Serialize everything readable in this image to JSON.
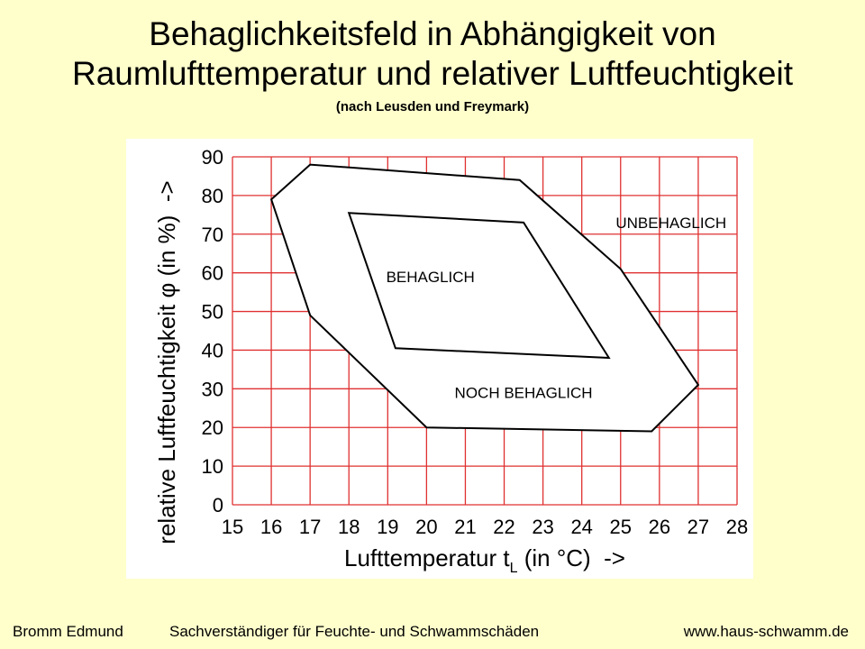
{
  "title": {
    "line1": "Behaglichkeitsfeld in Abhängigkeit von",
    "line2": "Raumlufttemperatur und relativer Luftfeuchtigkeit",
    "subtitle": "(nach Leusden und Freymark)"
  },
  "footer": {
    "author": "Bromm Edmund",
    "role": "Sachverständiger für Feuchte- und Schwammschäden",
    "website": "www.haus-schwamm.de"
  },
  "colors": {
    "background": "#FFFFCC",
    "grid": "#E03030",
    "region_fill": "#FFFFFF",
    "outline": "#000000"
  },
  "chart_data": {
    "type": "area",
    "xlabel": "Lufttemperatur t",
    "xlabel_sub": "L",
    "xlabel_suffix": " (in °C)  ->",
    "ylabel": "relative Luftfeuchtigkeit φ (in %)  ->",
    "xlim": [
      15,
      28
    ],
    "ylim": [
      0,
      90
    ],
    "xticks": [
      15,
      16,
      17,
      18,
      19,
      20,
      21,
      22,
      23,
      24,
      25,
      26,
      27,
      28
    ],
    "yticks": [
      0,
      10,
      20,
      30,
      40,
      50,
      60,
      70,
      80,
      90
    ],
    "grid": true,
    "regions": [
      {
        "label": "NOCH BEHAGLICH",
        "label_at": [
          22.5,
          29
        ],
        "points": [
          [
            16.0,
            79
          ],
          [
            17.0,
            88
          ],
          [
            22.4,
            84
          ],
          [
            25.0,
            61
          ],
          [
            27.0,
            31
          ],
          [
            25.8,
            19
          ],
          [
            20.0,
            20
          ],
          [
            17.0,
            49
          ]
        ]
      },
      {
        "label": "BEHAGLICH",
        "label_at": [
          20.1,
          59
        ],
        "points": [
          [
            18.0,
            75.5
          ],
          [
            22.5,
            73
          ],
          [
            24.7,
            38
          ],
          [
            19.2,
            40.5
          ]
        ]
      }
    ],
    "annotations": [
      {
        "text": "UNBEHAGLICH",
        "at": [
          26.3,
          73
        ]
      }
    ]
  }
}
